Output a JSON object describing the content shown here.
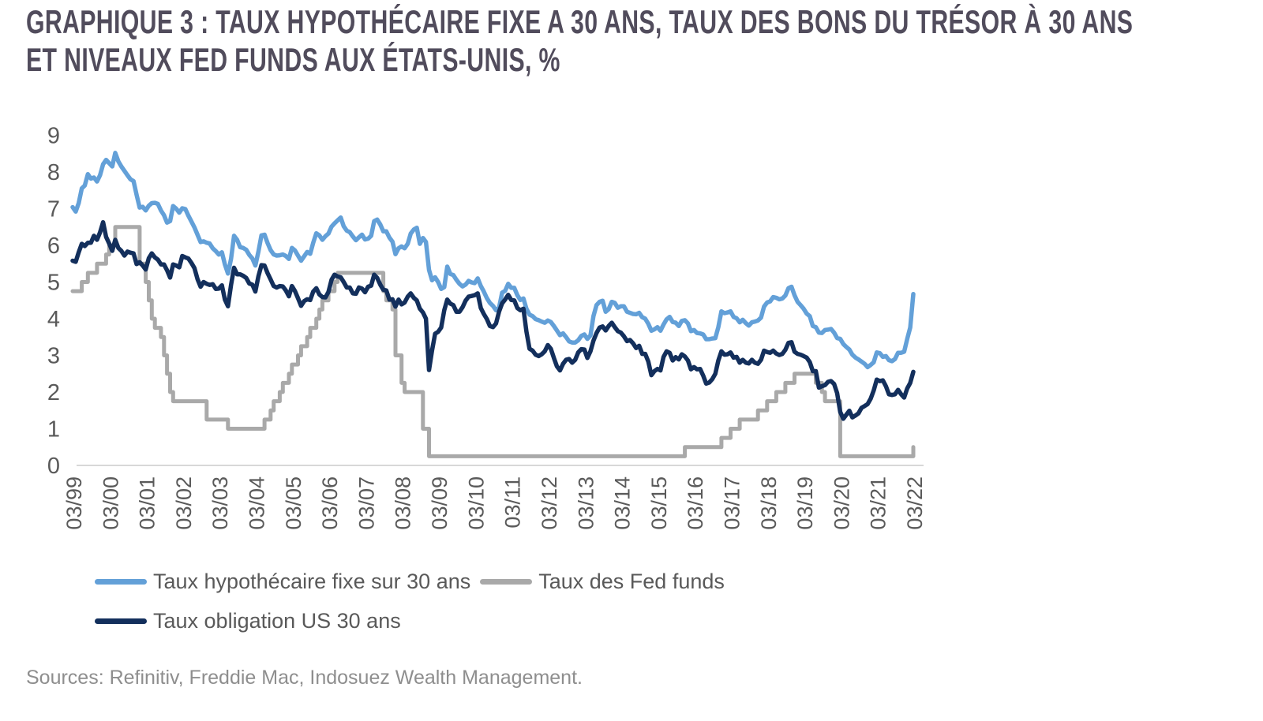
{
  "title": {
    "line1": "GRAPHIQUE 3 : TAUX HYPOTHÉCAIRE FIXE A 30 ANS, TAUX DES BONS DU TRÉSOR À 30 ANS",
    "line2": "ET NIVEAUX FED FUNDS AUX ÉTATS-UNIS, %"
  },
  "source": "Sources: Refinitiv, Freddie Mac, Indosuez Wealth Management.",
  "colors": {
    "title_text": "#514C5C",
    "tick_text": "#5A5A5A",
    "legend_text": "#595959",
    "source_text": "#8E8E8E",
    "axis_line": "#D8D8D8",
    "mortgage_blue": "#63A0D8",
    "treasury_navy": "#132F5C",
    "fedfunds_gray": "#A9A9A9"
  },
  "chart_data": {
    "type": "line",
    "title": "Taux hypothécaire fixe à 30 ans, taux des bons du Trésor à 30 ans et niveaux Fed funds aux États-Unis, %",
    "xlabel": "",
    "ylabel": "%",
    "ylim": [
      0,
      9
    ],
    "grid": false,
    "legend_position": "bottom",
    "x_start": "1999-03",
    "x_end": "2022-03",
    "months_per_point": 1,
    "y_ticks": [
      0,
      1,
      2,
      3,
      4,
      5,
      6,
      7,
      8,
      9
    ],
    "x_tick_labels": [
      "03/99",
      "03/00",
      "03/01",
      "03/02",
      "03/03",
      "03/04",
      "03/05",
      "03/06",
      "03/07",
      "03/08",
      "03/09",
      "03/10",
      "03/11",
      "03/12",
      "03/13",
      "03/14",
      "03/15",
      "03/16",
      "03/17",
      "03/18",
      "03/19",
      "03/20",
      "03/21",
      "03/22"
    ],
    "x_tick_every_points": 12,
    "series": [
      {
        "id": "mortgage-30y",
        "name": "Taux hypothécaire fixe sur 30 ans",
        "color": "#63A0D8",
        "step": false,
        "values": [
          7.04,
          6.92,
          7.15,
          7.55,
          7.63,
          7.94,
          7.82,
          7.85,
          7.74,
          7.91,
          8.21,
          8.33,
          8.24,
          8.15,
          8.52,
          8.29,
          8.15,
          8.03,
          7.91,
          7.8,
          7.75,
          7.38,
          7.03,
          7.05,
          6.95,
          7.08,
          7.15,
          7.16,
          7.13,
          6.95,
          6.82,
          6.62,
          6.66,
          7.07,
          7.0,
          6.89,
          7.01,
          6.99,
          6.81,
          6.65,
          6.49,
          6.29,
          6.09,
          6.11,
          6.07,
          6.05,
          5.92,
          5.84,
          5.75,
          5.81,
          5.48,
          5.23,
          5.63,
          6.26,
          6.15,
          5.95,
          5.93,
          5.88,
          5.74,
          5.64,
          5.45,
          5.83,
          6.27,
          6.29,
          6.06,
          5.87,
          5.75,
          5.72,
          5.73,
          5.75,
          5.71,
          5.63,
          5.93,
          5.86,
          5.72,
          5.58,
          5.7,
          5.82,
          5.77,
          6.07,
          6.33,
          6.27,
          6.15,
          6.25,
          6.32,
          6.51,
          6.6,
          6.68,
          6.76,
          6.52,
          6.4,
          6.36,
          6.24,
          6.14,
          6.22,
          6.29,
          6.16,
          6.18,
          6.26,
          6.66,
          6.7,
          6.57,
          6.38,
          6.38,
          6.21,
          6.1,
          5.76,
          5.92,
          5.97,
          5.92,
          6.04,
          6.32,
          6.43,
          6.48,
          6.04,
          6.2,
          6.09,
          5.33,
          5.05,
          5.13,
          5.0,
          4.81,
          4.86,
          5.42,
          5.22,
          5.19,
          5.06,
          4.95,
          4.88,
          4.93,
          5.03,
          4.99,
          4.97,
          5.1,
          4.89,
          4.74,
          4.56,
          4.43,
          4.35,
          4.23,
          4.3,
          4.71,
          4.76,
          4.95,
          4.84,
          4.84,
          4.64,
          4.51,
          4.55,
          4.27,
          4.11,
          4.07,
          3.99,
          3.96,
          3.92,
          3.89,
          3.95,
          3.91,
          3.8,
          3.68,
          3.55,
          3.6,
          3.5,
          3.38,
          3.35,
          3.35,
          3.41,
          3.53,
          3.57,
          3.45,
          3.54,
          4.07,
          4.37,
          4.46,
          4.49,
          4.19,
          4.26,
          4.46,
          4.43,
          4.3,
          4.34,
          4.34,
          4.19,
          4.16,
          4.13,
          4.12,
          4.16,
          4.04,
          4.0,
          3.86,
          3.67,
          3.71,
          3.77,
          3.67,
          3.84,
          3.98,
          4.05,
          3.91,
          3.89,
          3.8,
          3.94,
          3.96,
          3.87,
          3.66,
          3.69,
          3.61,
          3.6,
          3.57,
          3.44,
          3.44,
          3.46,
          3.47,
          3.77,
          4.2,
          4.15,
          4.17,
          4.2,
          4.05,
          4.01,
          3.9,
          3.97,
          3.88,
          3.81,
          3.9,
          3.92,
          3.95,
          4.03,
          4.33,
          4.44,
          4.47,
          4.59,
          4.57,
          4.53,
          4.55,
          4.63,
          4.83,
          4.87,
          4.64,
          4.46,
          4.37,
          4.27,
          4.14,
          4.07,
          3.8,
          3.77,
          3.62,
          3.61,
          3.69,
          3.7,
          3.72,
          3.62,
          3.47,
          3.45,
          3.31,
          3.23,
          3.16,
          3.02,
          2.94,
          2.89,
          2.83,
          2.77,
          2.68,
          2.74,
          2.81,
          3.08,
          3.06,
          2.96,
          2.98,
          2.87,
          2.84,
          2.9,
          3.07,
          3.07,
          3.1,
          3.45,
          3.76,
          4.67
        ]
      },
      {
        "id": "fed-funds",
        "name": "Taux des Fed funds",
        "color": "#A9A9A9",
        "step": true,
        "values": [
          4.75,
          4.75,
          4.75,
          5,
          5,
          5.25,
          5.25,
          5.25,
          5.5,
          5.5,
          5.5,
          5.75,
          6,
          6,
          6.5,
          6.5,
          6.5,
          6.5,
          6.5,
          6.5,
          6.5,
          6.5,
          5.5,
          5.5,
          5,
          4.5,
          4,
          3.75,
          3.75,
          3.5,
          3,
          2.5,
          2,
          1.75,
          1.75,
          1.75,
          1.75,
          1.75,
          1.75,
          1.75,
          1.75,
          1.75,
          1.75,
          1.75,
          1.25,
          1.25,
          1.25,
          1.25,
          1.25,
          1.25,
          1.25,
          1,
          1,
          1,
          1,
          1,
          1,
          1,
          1,
          1,
          1,
          1,
          1,
          1.25,
          1.25,
          1.5,
          1.75,
          1.75,
          2,
          2.25,
          2.25,
          2.5,
          2.75,
          2.75,
          3,
          3.25,
          3.25,
          3.5,
          3.75,
          3.75,
          4,
          4.25,
          4.5,
          4.5,
          4.75,
          4.75,
          5,
          5.25,
          5.25,
          5.25,
          5.25,
          5.25,
          5.25,
          5.25,
          5.25,
          5.25,
          5.25,
          5.25,
          5.25,
          5.25,
          5.25,
          5.25,
          4.75,
          4.5,
          4.5,
          4.25,
          3,
          3,
          2.25,
          2,
          2,
          2,
          2,
          2,
          2,
          1,
          1,
          0.25,
          0.25,
          0.25,
          0.25,
          0.25,
          0.25,
          0.25,
          0.25,
          0.25,
          0.25,
          0.25,
          0.25,
          0.25,
          0.25,
          0.25,
          0.25,
          0.25,
          0.25,
          0.25,
          0.25,
          0.25,
          0.25,
          0.25,
          0.25,
          0.25,
          0.25,
          0.25,
          0.25,
          0.25,
          0.25,
          0.25,
          0.25,
          0.25,
          0.25,
          0.25,
          0.25,
          0.25,
          0.25,
          0.25,
          0.25,
          0.25,
          0.25,
          0.25,
          0.25,
          0.25,
          0.25,
          0.25,
          0.25,
          0.25,
          0.25,
          0.25,
          0.25,
          0.25,
          0.25,
          0.25,
          0.25,
          0.25,
          0.25,
          0.25,
          0.25,
          0.25,
          0.25,
          0.25,
          0.25,
          0.25,
          0.25,
          0.25,
          0.25,
          0.25,
          0.25,
          0.25,
          0.25,
          0.25,
          0.25,
          0.25,
          0.25,
          0.25,
          0.25,
          0.25,
          0.25,
          0.25,
          0.25,
          0.25,
          0.25,
          0.5,
          0.5,
          0.5,
          0.5,
          0.5,
          0.5,
          0.5,
          0.5,
          0.5,
          0.5,
          0.5,
          0.5,
          0.75,
          0.75,
          0.75,
          1,
          1,
          1,
          1.25,
          1.25,
          1.25,
          1.25,
          1.25,
          1.25,
          1.5,
          1.5,
          1.5,
          1.75,
          1.75,
          1.75,
          2,
          2,
          2,
          2.25,
          2.25,
          2.25,
          2.5,
          2.5,
          2.5,
          2.5,
          2.5,
          2.5,
          2.5,
          2.25,
          2.25,
          2,
          1.75,
          1.75,
          1.75,
          1.75,
          1.75,
          0.25,
          0.25,
          0.25,
          0.25,
          0.25,
          0.25,
          0.25,
          0.25,
          0.25,
          0.25,
          0.25,
          0.25,
          0.25,
          0.25,
          0.25,
          0.25,
          0.25,
          0.25,
          0.25,
          0.25,
          0.25,
          0.25,
          0.25,
          0.25,
          0.5
        ]
      },
      {
        "id": "treasury-30y",
        "name": "Taux obligation US 30 ans",
        "color": "#132F5C",
        "step": false,
        "values": [
          5.58,
          5.55,
          5.81,
          6.04,
          5.98,
          6.07,
          6.07,
          6.26,
          6.15,
          6.35,
          6.63,
          6.23,
          6.05,
          5.85,
          6.15,
          5.93,
          5.85,
          5.72,
          5.83,
          5.8,
          5.78,
          5.49,
          5.54,
          5.45,
          5.34,
          5.65,
          5.78,
          5.67,
          5.61,
          5.48,
          5.48,
          5.32,
          5.12,
          5.48,
          5.45,
          5.4,
          5.71,
          5.67,
          5.64,
          5.52,
          5.38,
          5.08,
          4.87,
          5.0,
          4.95,
          4.92,
          4.94,
          4.81,
          4.82,
          4.91,
          4.52,
          4.34,
          4.92,
          5.39,
          5.21,
          5.21,
          5.17,
          5.11,
          4.96,
          4.93,
          4.74,
          5.16,
          5.46,
          5.45,
          5.24,
          5.07,
          4.89,
          4.85,
          4.89,
          4.88,
          4.77,
          4.61,
          4.89,
          4.75,
          4.56,
          4.35,
          4.48,
          4.53,
          4.51,
          4.74,
          4.83,
          4.66,
          4.59,
          4.58,
          4.73,
          5.06,
          5.2,
          5.15,
          5.13,
          5.0,
          4.85,
          4.85,
          4.69,
          4.68,
          4.85,
          4.82,
          4.72,
          4.87,
          4.9,
          5.2,
          5.11,
          4.93,
          4.79,
          4.77,
          4.52,
          4.53,
          4.33,
          4.52,
          4.39,
          4.44,
          4.6,
          4.69,
          4.57,
          4.5,
          4.27,
          4.17,
          4.0,
          2.6,
          3.13,
          3.59,
          3.64,
          3.76,
          4.23,
          4.52,
          4.41,
          4.37,
          4.19,
          4.19,
          4.31,
          4.49,
          4.6,
          4.62,
          4.64,
          4.69,
          4.29,
          4.13,
          3.99,
          3.8,
          3.77,
          3.87,
          4.19,
          4.42,
          4.52,
          4.65,
          4.51,
          4.5,
          4.29,
          4.23,
          4.27,
          3.65,
          3.18,
          3.13,
          3.02,
          2.98,
          3.03,
          3.11,
          3.28,
          3.18,
          2.93,
          2.7,
          2.59,
          2.77,
          2.88,
          2.9,
          2.8,
          2.88,
          3.08,
          3.17,
          3.16,
          2.93,
          3.11,
          3.4,
          3.61,
          3.76,
          3.79,
          3.68,
          3.8,
          3.89,
          3.77,
          3.66,
          3.62,
          3.52,
          3.39,
          3.42,
          3.33,
          3.2,
          3.26,
          3.04,
          3.04,
          2.83,
          2.46,
          2.57,
          2.63,
          2.59,
          2.96,
          3.11,
          3.07,
          2.86,
          2.95,
          2.89,
          3.03,
          2.97,
          2.86,
          2.62,
          2.68,
          2.62,
          2.63,
          2.45,
          2.23,
          2.26,
          2.35,
          2.5,
          2.86,
          3.11,
          3.02,
          3.03,
          3.08,
          2.94,
          2.96,
          2.8,
          2.88,
          2.8,
          2.78,
          2.88,
          2.8,
          2.77,
          2.88,
          3.13,
          3.09,
          3.07,
          3.13,
          3.05,
          3.01,
          3.04,
          3.15,
          3.34,
          3.36,
          3.1,
          3.04,
          3.02,
          2.98,
          2.94,
          2.82,
          2.57,
          2.57,
          2.12,
          2.16,
          2.19,
          2.28,
          2.3,
          2.22,
          1.97,
          1.46,
          1.27,
          1.38,
          1.49,
          1.31,
          1.36,
          1.42,
          1.57,
          1.62,
          1.67,
          1.82,
          2.04,
          2.34,
          2.3,
          2.32,
          2.16,
          1.94,
          1.92,
          1.94,
          2.06,
          1.94,
          1.85,
          2.1,
          2.25,
          2.55
        ]
      }
    ]
  },
  "legend_rows": [
    [
      0,
      1
    ],
    [
      2
    ]
  ]
}
